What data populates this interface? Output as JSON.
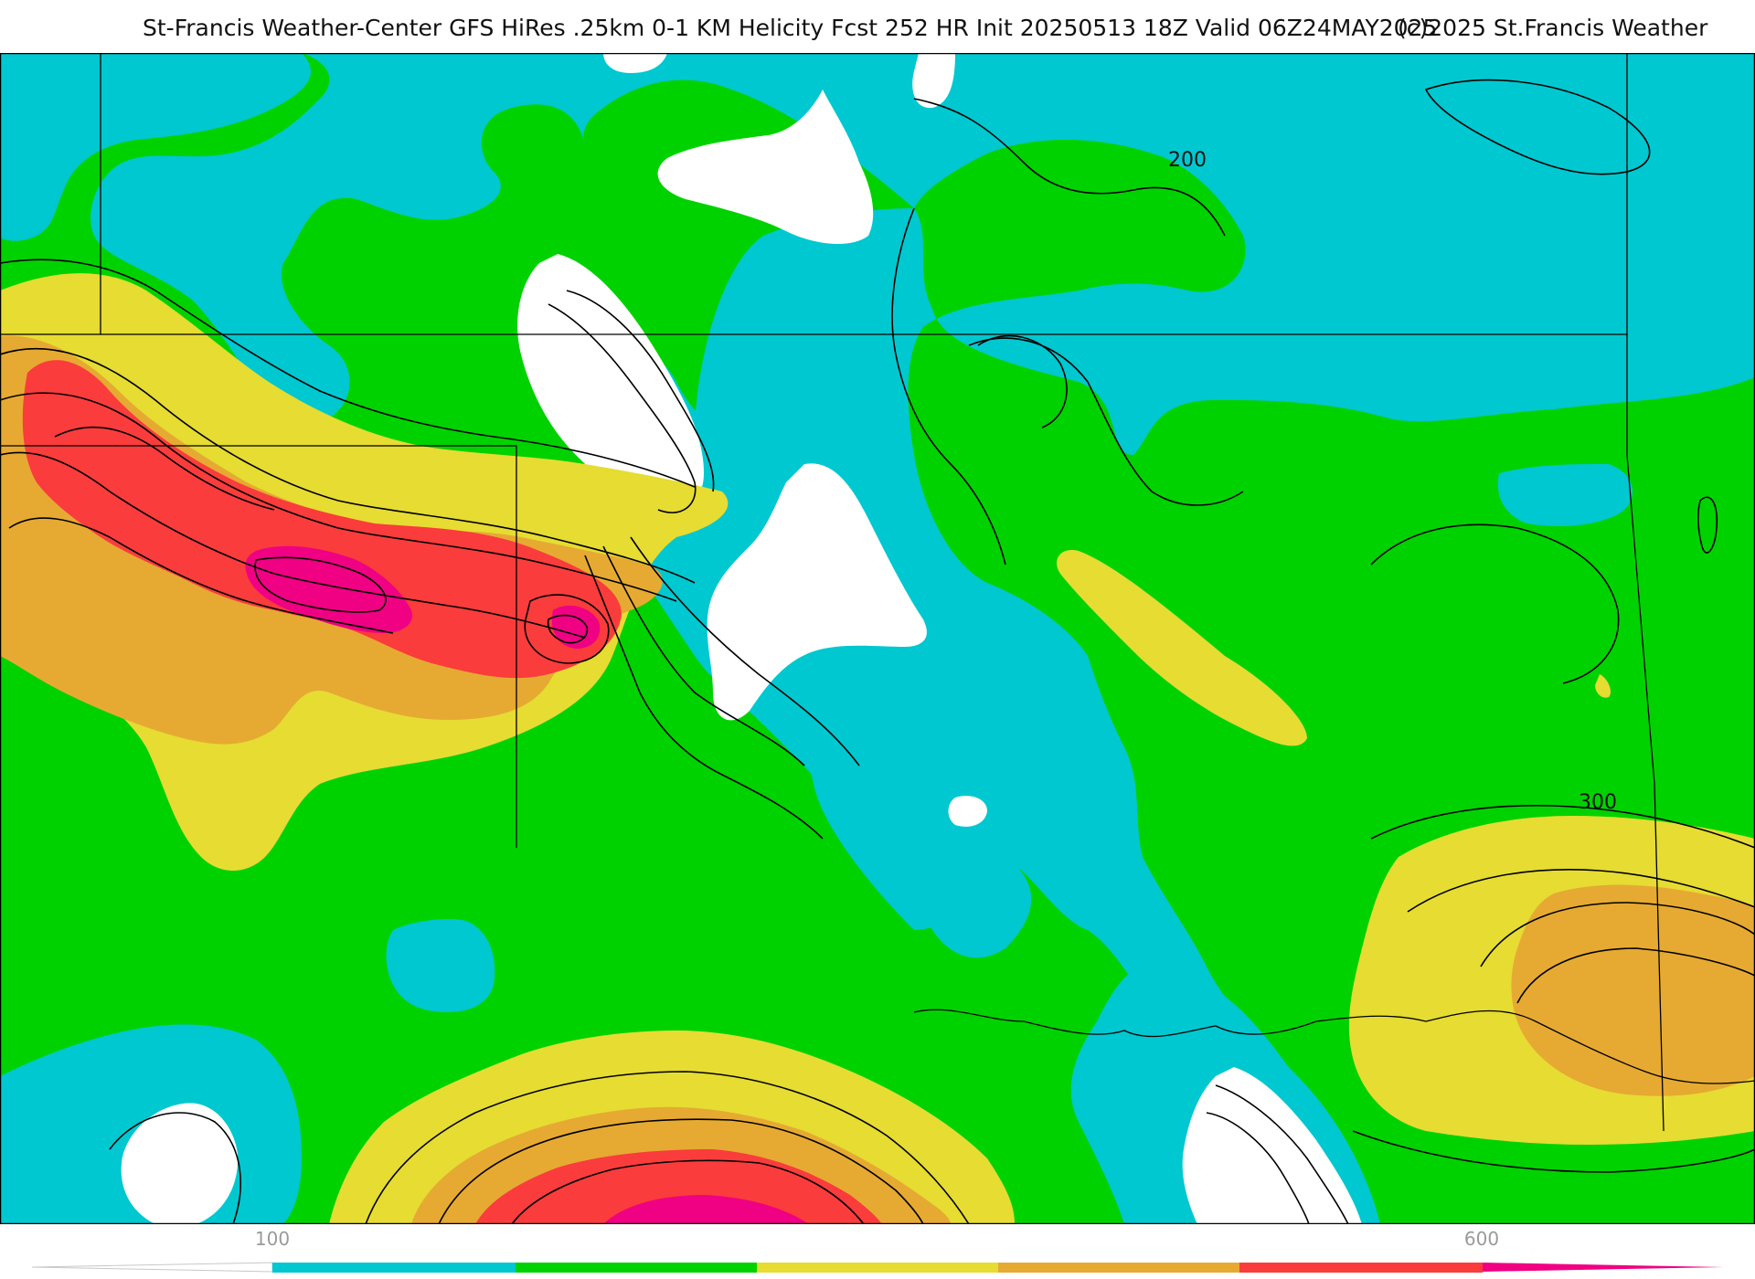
{
  "header": {
    "title": "St-Francis Weather-Center GFS HiRes .25km 0-1 KM Helicity Fcst 252 HR Init 20250513 18Z  Valid 06Z24MAY2025",
    "copyright": "(c)2025 St.Francis Weather"
  },
  "colors": {
    "below100": "#ffffff",
    "band100_200": "#00c8d0",
    "band200_300": "#00d200",
    "band300_400": "#e6dc32",
    "band400_500": "#e6aa32",
    "band500_600": "#fa3c3c",
    "band600plus": "#f00082",
    "contour": "#000000",
    "boundary": "#000000",
    "county_lines": "#b0b0b0"
  },
  "map": {
    "contour_labels": [
      "200",
      "300"
    ]
  },
  "legend": {
    "tick_labels": [
      "100",
      "600"
    ],
    "band_colors": [
      "#00c8d0",
      "#00d200",
      "#e6dc32",
      "#e6aa32",
      "#fa3c3c"
    ]
  }
}
